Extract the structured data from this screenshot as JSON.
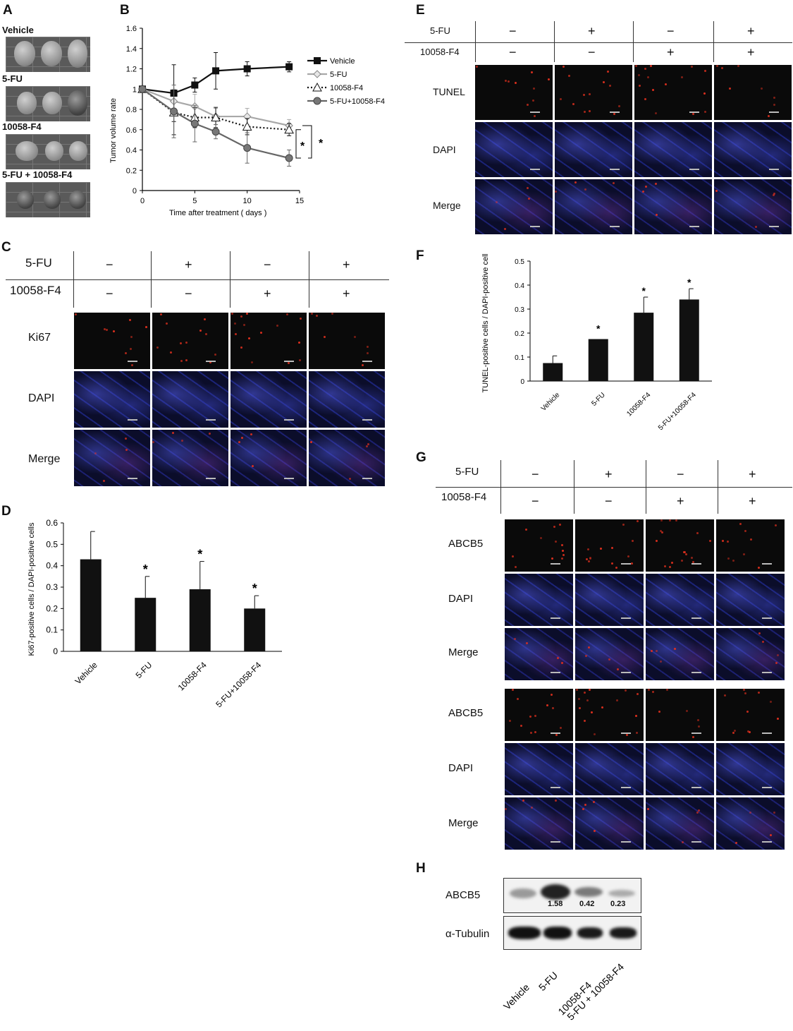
{
  "panels": {
    "A": "A",
    "B": "B",
    "C": "C",
    "D": "D",
    "E": "E",
    "F": "F",
    "G": "G",
    "H": "H"
  },
  "panelA": {
    "groups": [
      "Vehicle",
      "5-FU",
      "10058-F4",
      "5-FU + 10058-F4"
    ]
  },
  "treatment": {
    "row1_label": "5-FU",
    "row2_label": "10058-F4",
    "row1": [
      "−",
      "+",
      "−",
      "+"
    ],
    "row2": [
      "−",
      "−",
      "+",
      "+"
    ]
  },
  "panelC": {
    "rows": [
      "Ki67",
      "DAPI",
      "Merge"
    ]
  },
  "panelE": {
    "rows": [
      "TUNEL",
      "DAPI",
      "Merge"
    ]
  },
  "panelG": {
    "rows": [
      "ABCB5",
      "DAPI",
      "Merge",
      "ABCB5",
      "DAPI",
      "Merge"
    ]
  },
  "panelH": {
    "bands": [
      "ABCB5",
      "α-Tubulin"
    ],
    "values": [
      "1.58",
      "0.42",
      "0.23"
    ],
    "lanes": [
      "Vehicle",
      "5-FU",
      "10058-F4",
      "5-FU + 10058-F4"
    ]
  },
  "chart_data": [
    {
      "id": "B",
      "type": "line",
      "xlabel": "Time after treatment ( days )",
      "ylabel": "Tumor volume rate",
      "xlim": [
        0,
        15
      ],
      "ylim": [
        0,
        1.6
      ],
      "xticks": [
        0,
        5,
        10,
        15
      ],
      "yticks": [
        0,
        0.2,
        0.4,
        0.6,
        0.8,
        1,
        1.2,
        1.4,
        1.6
      ],
      "legend_position": "top-right",
      "x": [
        0,
        3,
        5,
        7,
        10,
        14
      ],
      "series": [
        {
          "name": "Vehicle",
          "values": [
            1,
            0.96,
            1.04,
            1.18,
            1.2,
            1.22
          ],
          "err": [
            0.03,
            0.28,
            0.07,
            0.18,
            0.07,
            0.05
          ],
          "color": "#111111",
          "marker": "square",
          "dash": "solid"
        },
        {
          "name": "5-FU",
          "values": [
            1,
            0.88,
            0.83,
            0.73,
            0.73,
            0.64
          ],
          "err": [
            0.03,
            0.12,
            0.12,
            0.08,
            0.08,
            0.06
          ],
          "color": "#a8a8a8",
          "marker": "diamond",
          "dash": "solid"
        },
        {
          "name": "10058-F4",
          "values": [
            1,
            0.77,
            0.72,
            0.72,
            0.63,
            0.6
          ],
          "err": [
            0.03,
            0.22,
            0.1,
            0.1,
            0.08,
            0.06
          ],
          "color": "#111111",
          "marker": "triangle",
          "dash": "dotted"
        },
        {
          "name": "5-FU+10058-F4",
          "values": [
            1,
            0.78,
            0.66,
            0.58,
            0.42,
            0.32
          ],
          "err": [
            0.03,
            0.26,
            0.18,
            0.07,
            0.15,
            0.08
          ],
          "color": "#666666",
          "marker": "circle",
          "dash": "solid"
        }
      ],
      "annotations": [
        "*",
        "*"
      ]
    },
    {
      "id": "D",
      "type": "bar",
      "ylabel": "Ki67-positive cells / DAPI-positive cells",
      "categories": [
        "Vehicle",
        "5-FU",
        "10058-F4",
        "5-FU+10058-F4"
      ],
      "values": [
        0.43,
        0.25,
        0.29,
        0.2
      ],
      "err": [
        0.13,
        0.1,
        0.13,
        0.06
      ],
      "ylim": [
        0,
        0.6
      ],
      "yticks": [
        0,
        0.1,
        0.2,
        0.3,
        0.4,
        0.5,
        0.6
      ],
      "stars": [
        "",
        "*",
        "*",
        "*"
      ]
    },
    {
      "id": "F",
      "type": "bar",
      "ylabel": "TUNEL-positive cells / DAPI-positive cells",
      "categories": [
        "Vehicle",
        "5-FU",
        "10058-F4",
        "5-FU+10058-F4"
      ],
      "values": [
        0.075,
        0.175,
        0.285,
        0.34
      ],
      "err": [
        0.03,
        0.0,
        0.065,
        0.045
      ],
      "ylim": [
        0,
        0.5
      ],
      "yticks": [
        0,
        0.1,
        0.2,
        0.3,
        0.4,
        0.5
      ],
      "stars": [
        "",
        "*",
        "*",
        "*"
      ]
    }
  ]
}
